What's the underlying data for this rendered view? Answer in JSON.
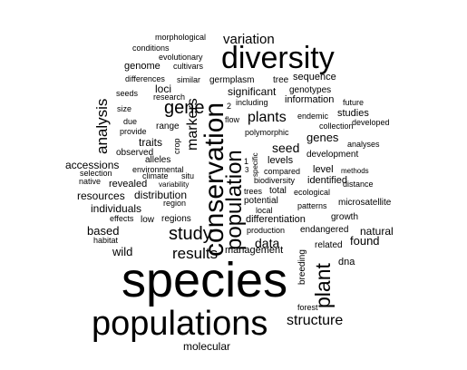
{
  "word_cloud": {
    "text_color": "#000000",
    "background": "#ffffff",
    "words": [
      "species",
      "populations",
      "diversity",
      "conservation",
      "population",
      "plant",
      "study",
      "gene",
      "results",
      "structure",
      "variation",
      "analysis",
      "plants",
      "markers",
      "seed",
      "genes",
      "data",
      "wild",
      "found",
      "based",
      "molecular",
      "distribution",
      "resources",
      "individuals",
      "accessions",
      "traits",
      "loci",
      "genome",
      "levels",
      "identified",
      "significant",
      "revealed",
      "level",
      "natural",
      "breeding",
      "dna",
      "sequence",
      "information",
      "differentiation",
      "management",
      "germplasm",
      "tree",
      "genotypes",
      "studies",
      "development",
      "low",
      "regions",
      "observed",
      "range",
      "alleles",
      "environmental",
      "related",
      "endangered",
      "microsatellite",
      "growth",
      "morphological",
      "conditions",
      "evolutionary",
      "cultivars",
      "differences",
      "research",
      "seeds",
      "similar",
      "size",
      "due",
      "provide",
      "climate",
      "selection",
      "native",
      "situ",
      "variability",
      "effects",
      "habitat",
      "region",
      "crop",
      "flow",
      "including",
      "polymorphic",
      "2",
      "1",
      "3",
      "specific",
      "compared",
      "biodiversity",
      "trees",
      "total",
      "local",
      "production",
      "potential",
      "patterns",
      "ecological",
      "methods",
      "distance",
      "analyses",
      "future",
      "collection",
      "endemic",
      "developed",
      "forest"
    ]
  }
}
